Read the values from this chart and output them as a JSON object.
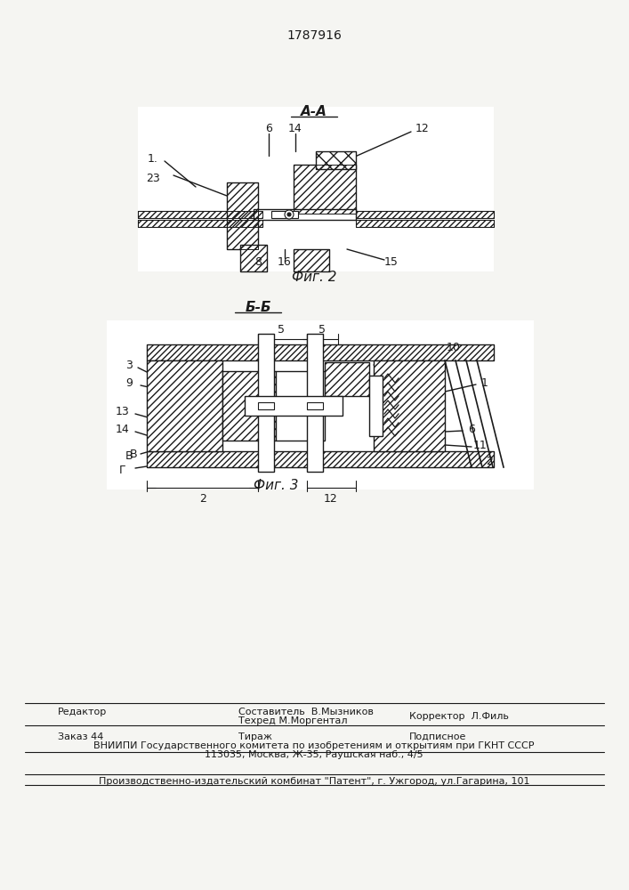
{
  "patent_number": "1787916",
  "bg_color": "#f5f5f2",
  "line_color": "#1a1a1a",
  "fig2_title": "А-А",
  "fig2_label": "Фиг. 2",
  "fig3_title": "Б-Б",
  "fig3_label": "Фиг. 3",
  "footer_line1_left": "Редактор",
  "footer_line1_center1": "Составитель  В.Мызников",
  "footer_line1_center2": "Техред М.Моргентал",
  "footer_line1_right": "Корректор  Л.Филь",
  "footer_line2_left": "Заказ 44",
  "footer_line2_center": "Тираж",
  "footer_line2_right": "Подписное",
  "footer_line3": "ВНИИПИ Государственного комитета по изобретениям и открытиям при ГКНТ СССР",
  "footer_line4": "113035, Москва, Ж-35, Раушская наб., 4/5",
  "footer_line5": "Производственно-издательский комбинат \"Патент\", г. Ужгород, ул.Гагарина, 101"
}
